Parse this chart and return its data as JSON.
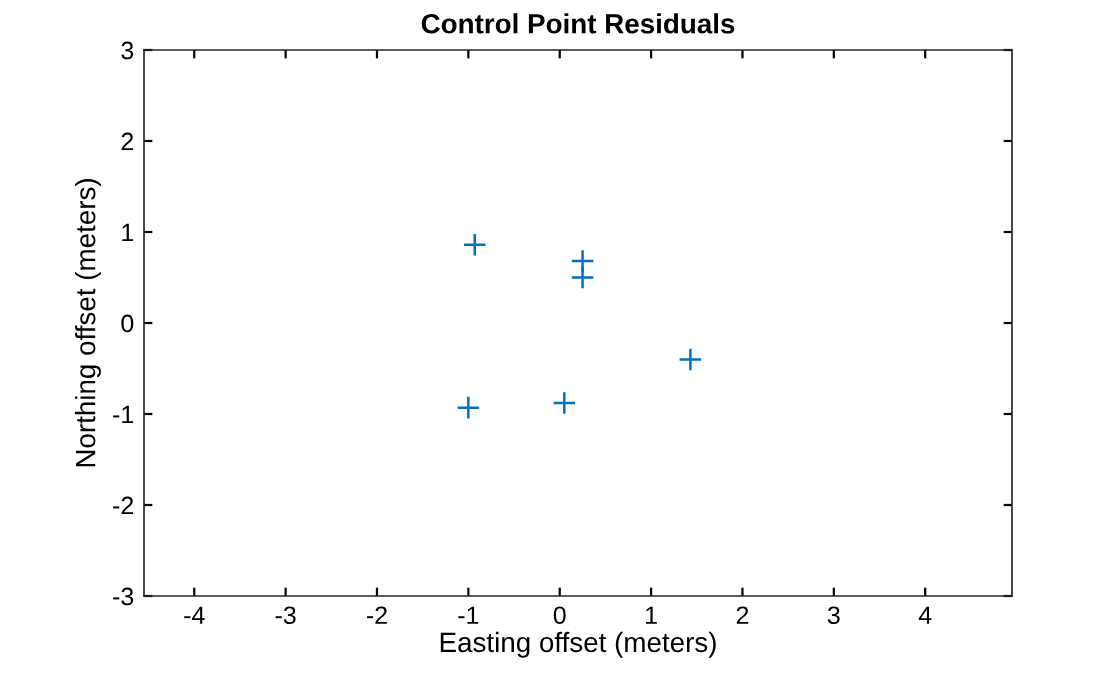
{
  "chart_data": {
    "type": "scatter",
    "title": "Control Point Residuals",
    "xlabel": "Easting offset (meters)",
    "ylabel": "Northing offset (meters)",
    "series": [
      {
        "color": "#0072bd",
        "x": [
          -0.93,
          0.25,
          0.25,
          1.43,
          -1.0,
          0.05
        ],
        "values": [
          0.86,
          0.68,
          0.5,
          -0.4,
          -0.93,
          -0.88
        ]
      }
    ],
    "marker": "cross",
    "xlim": [
      -4.55,
      4.95
    ],
    "ylim": [
      -3,
      3
    ],
    "xticks": [
      -4,
      -3,
      -2,
      -1,
      0,
      1,
      2,
      3,
      4
    ],
    "yticks": [
      -3,
      -2,
      -1,
      0,
      1,
      2,
      3
    ],
    "grid": false,
    "legend": false
  }
}
